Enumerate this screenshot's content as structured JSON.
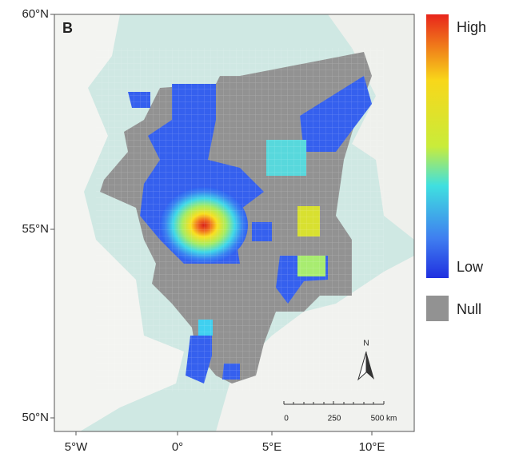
{
  "panel_label": "B",
  "lat_labels": [
    "60°N",
    "55°N",
    "50°N"
  ],
  "lon_labels": [
    "5°W",
    "0°",
    "5°E",
    "10°E"
  ],
  "legend": {
    "high": "High",
    "low": "Low",
    "null": "Null"
  },
  "scale_bar": {
    "labels": [
      "0",
      "250",
      "500 km"
    ]
  },
  "north": "N"
}
